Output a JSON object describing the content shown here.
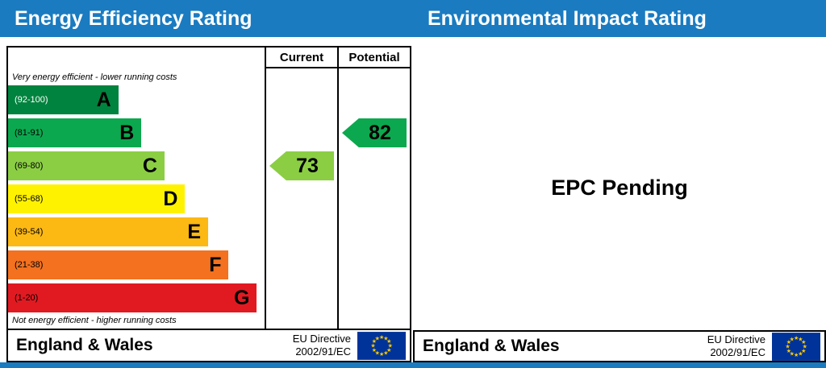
{
  "header": {
    "left_title": "Energy Efficiency Rating",
    "right_title": "Environmental Impact Rating",
    "bg_color": "#1a7bc0"
  },
  "left_chart": {
    "col_current": "Current",
    "col_potential": "Potential",
    "note_top": "Very energy efficient - lower running costs",
    "note_bottom": "Not energy efficient - higher running costs",
    "footer": {
      "region": "England & Wales",
      "directive_line1": "EU Directive",
      "directive_line2": "2002/91/EC"
    }
  },
  "right_panel": {
    "message": "EPC Pending",
    "footer": {
      "region": "England & Wales",
      "directive_line1": "EU Directive",
      "directive_line2": "2002/91/EC"
    }
  },
  "chart_data": {
    "type": "bar",
    "title": "Energy Efficiency Rating",
    "bands": [
      {
        "letter": "A",
        "range": "(92-100)",
        "color": "#00833e",
        "range_color": "#ffffff",
        "width_pct": 43
      },
      {
        "letter": "B",
        "range": "(81-91)",
        "color": "#0ca84f",
        "range_color": "#000000",
        "width_pct": 52
      },
      {
        "letter": "C",
        "range": "(69-80)",
        "color": "#8bce44",
        "range_color": "#000000",
        "width_pct": 61
      },
      {
        "letter": "D",
        "range": "(55-68)",
        "color": "#fff200",
        "range_color": "#000000",
        "width_pct": 69
      },
      {
        "letter": "E",
        "range": "(39-54)",
        "color": "#fcb813",
        "range_color": "#000000",
        "width_pct": 78
      },
      {
        "letter": "F",
        "range": "(21-38)",
        "color": "#f3711f",
        "range_color": "#000000",
        "width_pct": 86
      },
      {
        "letter": "G",
        "range": "(1-20)",
        "color": "#e11a22",
        "range_color": "#000000",
        "width_pct": 97
      }
    ],
    "current": {
      "label": "Current",
      "value": 73,
      "band": "C",
      "color": "#8bce44"
    },
    "potential": {
      "label": "Potential",
      "value": 82,
      "band": "B",
      "color": "#0ca84f"
    },
    "scale_range": [
      1,
      100
    ]
  },
  "flag": {
    "bg": "#003399",
    "star": "#ffcc00"
  }
}
